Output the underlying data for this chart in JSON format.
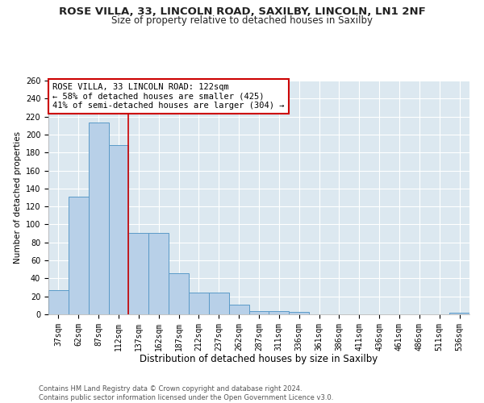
{
  "title1": "ROSE VILLA, 33, LINCOLN ROAD, SAXILBY, LINCOLN, LN1 2NF",
  "title2": "Size of property relative to detached houses in Saxilby",
  "xlabel": "Distribution of detached houses by size in Saxilby",
  "ylabel": "Number of detached properties",
  "categories": [
    "37sqm",
    "62sqm",
    "87sqm",
    "112sqm",
    "137sqm",
    "162sqm",
    "187sqm",
    "212sqm",
    "237sqm",
    "262sqm",
    "287sqm",
    "311sqm",
    "336sqm",
    "361sqm",
    "386sqm",
    "411sqm",
    "436sqm",
    "461sqm",
    "486sqm",
    "511sqm",
    "536sqm"
  ],
  "values": [
    27,
    131,
    213,
    188,
    91,
    91,
    46,
    24,
    24,
    11,
    4,
    4,
    3,
    0,
    0,
    0,
    0,
    0,
    0,
    0,
    2
  ],
  "bar_color": "#b8d0e8",
  "bar_edge_color": "#5a9ac8",
  "vline_x": 3.5,
  "vline_color": "#cc0000",
  "annotation_text": "ROSE VILLA, 33 LINCOLN ROAD: 122sqm\n← 58% of detached houses are smaller (425)\n41% of semi-detached houses are larger (304) →",
  "annotation_box_color": "#ffffff",
  "annotation_box_edge": "#cc0000",
  "ylim": [
    0,
    260
  ],
  "yticks": [
    0,
    20,
    40,
    60,
    80,
    100,
    120,
    140,
    160,
    180,
    200,
    220,
    240,
    260
  ],
  "bg_color": "#dce8f0",
  "grid_color": "#ffffff",
  "fig_color": "#ffffff",
  "footer": "Contains HM Land Registry data © Crown copyright and database right 2024.\nContains public sector information licensed under the Open Government Licence v3.0.",
  "title1_fontsize": 9.5,
  "title2_fontsize": 8.5,
  "xlabel_fontsize": 8.5,
  "ylabel_fontsize": 7.5,
  "tick_fontsize": 7,
  "annot_fontsize": 7.5,
  "footer_fontsize": 6
}
